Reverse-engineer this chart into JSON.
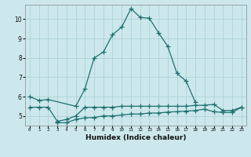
{
  "title": "",
  "xlabel": "Humidex (Indice chaleur)",
  "background_color": "#cce8ec",
  "line_color": "#1e7070",
  "grid_color": "#a8cdd2",
  "xlim": [
    -0.5,
    23.5
  ],
  "ylim": [
    4.5,
    10.75
  ],
  "yticks": [
    5,
    6,
    7,
    8,
    9,
    10
  ],
  "xticks": [
    0,
    1,
    2,
    3,
    4,
    5,
    6,
    7,
    8,
    9,
    10,
    11,
    12,
    13,
    14,
    15,
    16,
    17,
    18,
    19,
    20,
    21,
    22,
    23
  ],
  "line1_x": [
    0,
    1,
    2,
    5,
    6,
    7,
    8,
    9,
    10,
    11,
    12,
    13,
    14,
    15,
    16,
    17,
    18
  ],
  "line1_y": [
    6.0,
    5.8,
    5.85,
    5.5,
    6.4,
    8.0,
    8.3,
    9.2,
    9.6,
    10.55,
    10.1,
    10.05,
    9.3,
    8.6,
    7.2,
    6.8,
    5.7
  ],
  "line2_x": [
    0,
    1,
    2,
    3,
    4,
    5,
    6,
    7,
    8,
    9,
    10,
    11,
    12,
    13,
    14,
    15,
    16,
    17,
    18,
    19,
    20,
    21,
    22,
    23
  ],
  "line2_y": [
    5.45,
    5.45,
    5.45,
    4.72,
    4.82,
    5.0,
    5.45,
    5.45,
    5.45,
    5.45,
    5.5,
    5.5,
    5.5,
    5.5,
    5.5,
    5.5,
    5.5,
    5.5,
    5.55,
    5.55,
    5.6,
    5.28,
    5.28,
    5.45
  ],
  "line3_x": [
    3,
    4,
    5,
    6,
    7,
    8,
    9,
    10,
    11,
    12,
    13,
    14,
    15,
    16,
    17,
    18,
    19,
    20,
    21,
    22,
    23
  ],
  "line3_y": [
    4.65,
    4.65,
    4.82,
    4.9,
    4.92,
    5.0,
    5.0,
    5.05,
    5.1,
    5.1,
    5.15,
    5.15,
    5.2,
    5.22,
    5.25,
    5.28,
    5.35,
    5.22,
    5.18,
    5.18,
    5.45
  ]
}
